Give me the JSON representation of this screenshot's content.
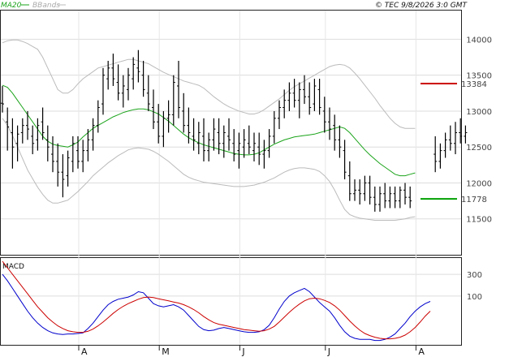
{
  "header": {
    "legend": [
      {
        "label": "MA20",
        "color": "#1aa31a"
      },
      {
        "label": "BBands",
        "color": "#bbbbbb"
      }
    ],
    "copyright": "© TEC 9/8/2026 3:0 GMT"
  },
  "chart_data": [
    {
      "type": "ohlc",
      "panel": "price",
      "y_ticks": [
        11500,
        12000,
        12500,
        13000,
        13500,
        14000
      ],
      "y_tick_labels": [
        "11500",
        "12000",
        "12500",
        "13000",
        "13500",
        "14000"
      ],
      "ylim": [
        11000,
        14400
      ],
      "x_month_labels": [
        "A",
        "M",
        "J",
        "J",
        "A"
      ],
      "x_month_index": [
        15,
        31,
        47,
        64,
        82
      ],
      "grid": true,
      "series": [
        {
          "name": "MA20",
          "color": "#1aa31a",
          "values": [
            13360,
            13330,
            13250,
            13150,
            13050,
            12950,
            12850,
            12750,
            12650,
            12580,
            12540,
            12520,
            12510,
            12500,
            12530,
            12570,
            12640,
            12700,
            12760,
            12800,
            12840,
            12880,
            12920,
            12950,
            12980,
            13000,
            13020,
            13030,
            13030,
            13020,
            12990,
            12960,
            12910,
            12860,
            12800,
            12740,
            12680,
            12630,
            12590,
            12560,
            12530,
            12510,
            12490,
            12470,
            12450,
            12430,
            12410,
            12400,
            12390,
            12390,
            12400,
            12420,
            12460,
            12500,
            12540,
            12570,
            12600,
            12620,
            12640,
            12650,
            12660,
            12670,
            12680,
            12700,
            12720,
            12740,
            12760,
            12780,
            12760,
            12700,
            12620,
            12540,
            12460,
            12390,
            12330,
            12270,
            12220,
            12170,
            12120,
            12100,
            12100,
            12120,
            12140
          ]
        },
        {
          "name": "BBands upper",
          "color": "#bbbbbb",
          "values": [
            13950,
            13980,
            13990,
            13990,
            13970,
            13940,
            13900,
            13860,
            13750,
            13600,
            13450,
            13300,
            13250,
            13250,
            13300,
            13380,
            13450,
            13500,
            13550,
            13600,
            13620,
            13640,
            13660,
            13680,
            13700,
            13720,
            13720,
            13700,
            13680,
            13660,
            13620,
            13580,
            13540,
            13510,
            13480,
            13450,
            13420,
            13400,
            13380,
            13360,
            13320,
            13260,
            13200,
            13150,
            13100,
            13060,
            13030,
            13000,
            12980,
            12960,
            12960,
            12980,
            13020,
            13070,
            13120,
            13170,
            13230,
            13290,
            13340,
            13380,
            13420,
            13460,
            13500,
            13540,
            13580,
            13620,
            13640,
            13650,
            13640,
            13600,
            13530,
            13450,
            13360,
            13270,
            13180,
            13080,
            12990,
            12900,
            12830,
            12780,
            12760,
            12760,
            12760
          ]
        },
        {
          "name": "BBands lower",
          "color": "#bbbbbb",
          "values": [
            12900,
            12800,
            12660,
            12500,
            12340,
            12180,
            12060,
            11940,
            11840,
            11760,
            11720,
            11720,
            11740,
            11760,
            11820,
            11880,
            11950,
            12020,
            12100,
            12160,
            12220,
            12280,
            12330,
            12380,
            12420,
            12460,
            12480,
            12490,
            12480,
            12470,
            12440,
            12400,
            12350,
            12300,
            12240,
            12180,
            12120,
            12080,
            12050,
            12030,
            12010,
            12000,
            11990,
            11980,
            11970,
            11960,
            11950,
            11950,
            11950,
            11960,
            11970,
            11990,
            12010,
            12040,
            12070,
            12110,
            12150,
            12180,
            12200,
            12210,
            12210,
            12200,
            12190,
            12160,
            12100,
            12020,
            11900,
            11760,
            11630,
            11560,
            11530,
            11510,
            11500,
            11490,
            11480,
            11480,
            11480,
            11480,
            11480,
            11490,
            11500,
            11520,
            11530
          ]
        }
      ],
      "bars": [
        [
          13110,
          13350,
          12980,
          13100
        ],
        [
          12850,
          13050,
          12450,
          12780
        ],
        [
          12700,
          12900,
          12200,
          12500
        ],
        [
          12550,
          12800,
          12300,
          12680
        ],
        [
          12700,
          12900,
          12550,
          12800
        ],
        [
          12800,
          13000,
          12600,
          12750
        ],
        [
          12650,
          12800,
          12400,
          12550
        ],
        [
          12600,
          12900,
          12450,
          12800
        ],
        [
          12850,
          13050,
          12600,
          12700
        ],
        [
          12600,
          12800,
          12300,
          12500
        ],
        [
          12400,
          12650,
          12150,
          12300
        ],
        [
          12300,
          12550,
          11950,
          12150
        ],
        [
          12150,
          12400,
          11800,
          12050
        ],
        [
          12100,
          12450,
          11950,
          12350
        ],
        [
          12300,
          12650,
          12150,
          12550
        ],
        [
          12450,
          12650,
          12200,
          12300
        ],
        [
          12300,
          12600,
          12150,
          12450
        ],
        [
          12450,
          12750,
          12300,
          12600
        ],
        [
          12600,
          12900,
          12450,
          12800
        ],
        [
          12800,
          13150,
          12700,
          13050
        ],
        [
          13100,
          13600,
          12950,
          13500
        ],
        [
          13450,
          13700,
          13300,
          13600
        ],
        [
          13600,
          13800,
          13350,
          13450
        ],
        [
          13400,
          13650,
          13150,
          13250
        ],
        [
          13250,
          13500,
          13050,
          13350
        ],
        [
          13300,
          13600,
          13150,
          13500
        ],
        [
          13450,
          13750,
          13300,
          13650
        ],
        [
          13600,
          13850,
          13400,
          13550
        ],
        [
          13500,
          13700,
          13200,
          13300
        ],
        [
          13250,
          13500,
          13000,
          13100
        ],
        [
          13050,
          13300,
          12750,
          12850
        ],
        [
          12850,
          13100,
          12550,
          12650
        ],
        [
          12650,
          13000,
          12500,
          12900
        ],
        [
          12900,
          13150,
          12700,
          12950
        ],
        [
          12950,
          13500,
          12800,
          13400
        ],
        [
          13350,
          13700,
          12900,
          13050
        ],
        [
          13000,
          13250,
          12700,
          12800
        ],
        [
          12800,
          13050,
          12550,
          12700
        ],
        [
          12650,
          12900,
          12450,
          12600
        ],
        [
          12550,
          12850,
          12400,
          12700
        ],
        [
          12650,
          12900,
          12300,
          12450
        ],
        [
          12450,
          12700,
          12300,
          12600
        ],
        [
          12600,
          12900,
          12450,
          12750
        ],
        [
          12700,
          12900,
          12400,
          12550
        ],
        [
          12550,
          12800,
          12350,
          12700
        ],
        [
          12650,
          12900,
          12450,
          12600
        ],
        [
          12550,
          12750,
          12300,
          12400
        ],
        [
          12450,
          12700,
          12200,
          12550
        ],
        [
          12500,
          12750,
          12350,
          12600
        ],
        [
          12550,
          12800,
          12400,
          12500
        ],
        [
          12450,
          12700,
          12300,
          12550
        ],
        [
          12500,
          12700,
          12250,
          12400
        ],
        [
          12400,
          12600,
          12200,
          12450
        ],
        [
          12450,
          12750,
          12350,
          12650
        ],
        [
          12650,
          13000,
          12550,
          12900
        ],
        [
          12900,
          13150,
          12750,
          13050
        ],
        [
          13050,
          13300,
          12900,
          13150
        ],
        [
          13150,
          13400,
          13000,
          13250
        ],
        [
          13250,
          13450,
          13050,
          13150
        ],
        [
          13150,
          13400,
          12900,
          13300
        ],
        [
          13300,
          13500,
          13100,
          13200
        ],
        [
          13200,
          13400,
          12950,
          13050
        ],
        [
          13100,
          13450,
          13000,
          13350
        ],
        [
          13300,
          13450,
          12950,
          13050
        ],
        [
          13000,
          13200,
          12700,
          12850
        ],
        [
          12850,
          13050,
          12600,
          12750
        ],
        [
          12800,
          12950,
          12450,
          12600
        ],
        [
          12600,
          12800,
          12350,
          12500
        ],
        [
          12450,
          12600,
          12050,
          12150
        ],
        [
          12100,
          12300,
          11750,
          11850
        ],
        [
          11850,
          12050,
          11750,
          11900
        ],
        [
          11900,
          12050,
          11700,
          11850
        ],
        [
          11850,
          12100,
          11750,
          12000
        ],
        [
          12000,
          12100,
          11700,
          11800
        ],
        [
          11800,
          11950,
          11600,
          11700
        ],
        [
          11700,
          11950,
          11600,
          11850
        ],
        [
          11850,
          12000,
          11650,
          11750
        ],
        [
          11750,
          11950,
          11650,
          11850
        ],
        [
          11850,
          11950,
          11650,
          11750
        ],
        [
          11750,
          11950,
          11650,
          11900
        ],
        [
          11900,
          12000,
          11700,
          11800
        ],
        [
          11800,
          11950,
          11650,
          11750
        ],
        null,
        null,
        null,
        null,
        [
          12400,
          12650,
          12150,
          12300
        ],
        [
          12300,
          12550,
          12200,
          12450
        ],
        [
          12450,
          12700,
          12350,
          12600
        ],
        [
          12600,
          12800,
          12450,
          12550
        ],
        [
          12550,
          12850,
          12400,
          12700
        ],
        [
          12700,
          12900,
          12550,
          12650
        ],
        [
          12650,
          12800,
          12550,
          12700
        ]
      ],
      "last_value_markers": [
        {
          "label": "13384",
          "value": 13384,
          "color": "#cc0000"
        },
        {
          "label": "11778",
          "value": 11778,
          "color": "#00a000"
        }
      ]
    },
    {
      "type": "line",
      "panel": "macd",
      "title": "MACD",
      "y_ticks": [
        100,
        300
      ],
      "y_tick_labels": [
        "100",
        "300"
      ],
      "ylim": [
        -350,
        450
      ],
      "grid": true,
      "series": [
        {
          "name": "MACD line",
          "color": "#0000cc",
          "values": [
            300,
            240,
            170,
            100,
            30,
            -40,
            -100,
            -150,
            -190,
            -220,
            -240,
            -250,
            -255,
            -250,
            -250,
            -245,
            -240,
            -200,
            -150,
            -90,
            -30,
            20,
            50,
            70,
            80,
            90,
            110,
            140,
            130,
            80,
            30,
            10,
            0,
            10,
            20,
            0,
            -30,
            -80,
            -130,
            -180,
            -210,
            -220,
            -215,
            -200,
            -190,
            -200,
            -210,
            -220,
            -230,
            -235,
            -235,
            -230,
            -210,
            -170,
            -100,
            -20,
            50,
            100,
            130,
            150,
            170,
            140,
            90,
            40,
            0,
            -40,
            -100,
            -170,
            -230,
            -270,
            -290,
            -300,
            -300,
            -300,
            -310,
            -310,
            -300,
            -280,
            -250,
            -200,
            -150,
            -90,
            -40,
            0,
            30,
            50
          ]
        },
        {
          "name": "Signal line",
          "color": "#cc0000",
          "values": [
            420,
            360,
            300,
            240,
            180,
            120,
            60,
            0,
            -50,
            -100,
            -140,
            -175,
            -200,
            -220,
            -230,
            -235,
            -235,
            -225,
            -205,
            -175,
            -140,
            -100,
            -60,
            -25,
            5,
            30,
            50,
            70,
            85,
            90,
            85,
            75,
            65,
            55,
            45,
            35,
            20,
            0,
            -25,
            -55,
            -90,
            -120,
            -145,
            -160,
            -170,
            -180,
            -190,
            -200,
            -210,
            -215,
            -220,
            -225,
            -220,
            -205,
            -180,
            -140,
            -95,
            -50,
            -10,
            25,
            55,
            75,
            80,
            75,
            60,
            40,
            10,
            -30,
            -80,
            -130,
            -175,
            -215,
            -245,
            -265,
            -280,
            -290,
            -295,
            -295,
            -290,
            -280,
            -260,
            -230,
            -190,
            -140,
            -85,
            -40
          ]
        }
      ]
    }
  ]
}
